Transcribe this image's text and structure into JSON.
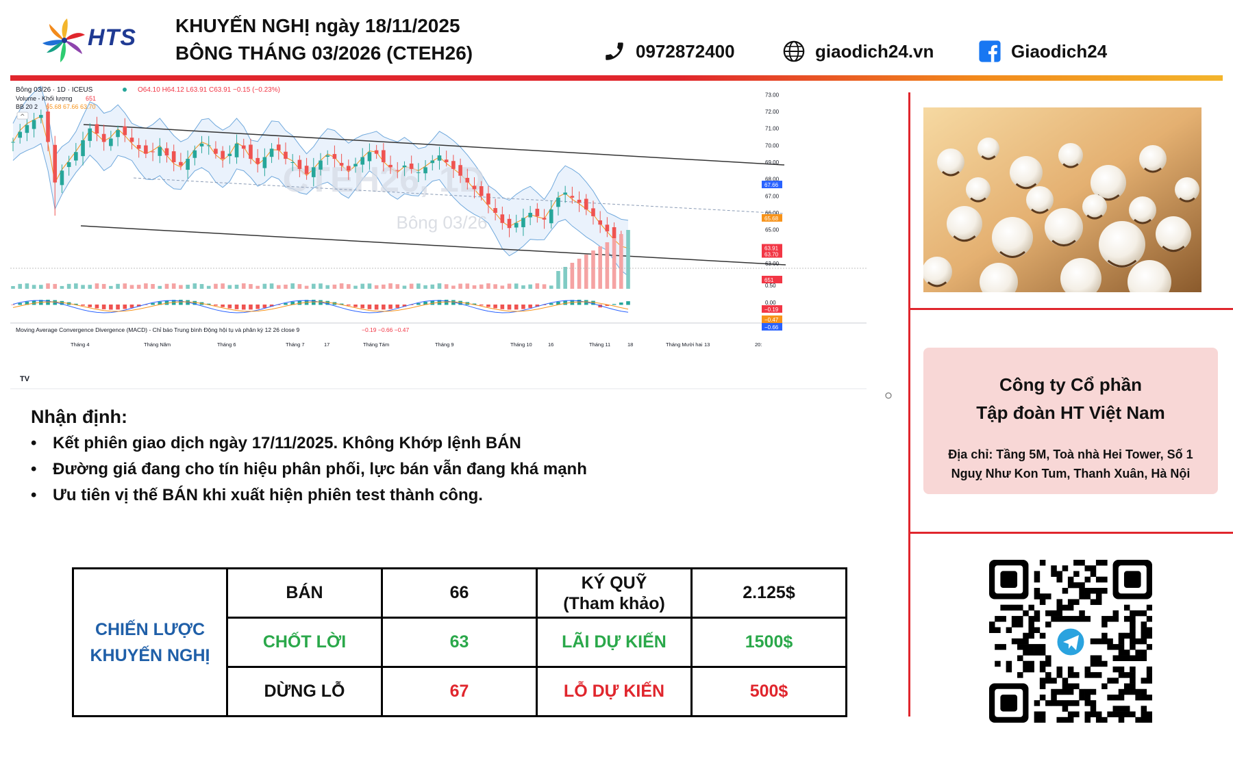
{
  "header": {
    "logo_text": "HTS",
    "title_line1": "KHUYẾN NGHỊ ngày 18/11/2025",
    "title_line2": "BÔNG THÁNG 03/2026 (CTEH26)",
    "phone": "0972872400",
    "website": "giaodich24.vn",
    "facebook": "Giaodich24",
    "icons": [
      "phone-icon",
      "globe-icon",
      "facebook-icon"
    ]
  },
  "chart_header": {
    "symbol_line": "Bông 03/26 · 1D · ICEUS",
    "ohlc": "O64.10 H64.12 L63.91 C63.91 −0.15 (−0.23%)",
    "volume_label": "Volume - Khối lượng",
    "volume_value": "651",
    "bb_label": "BB 20 2",
    "bb_values": "65.68  67.66  63.70",
    "watermark_1": "CTEH26, 1D",
    "watermark_2": "Bông 03/26",
    "macd_label": "Moving Average Convergence Divergence (MACD) - Chỉ báo Trung bình Động hội tụ và phân kỳ 12 26 close 9",
    "macd_values": "−0.19  −0.66  −0.47",
    "tv_logo": "TV"
  },
  "chart_data": {
    "type": "candlestick",
    "y_ticks": [
      "73.00",
      "72.00",
      "71.00",
      "70.00",
      "69.00",
      "68.00",
      "67.00",
      "66.00",
      "65.00",
      "64.00",
      "63.00",
      "62.00"
    ],
    "ylim": [
      61.5,
      73.5
    ],
    "price_badges": [
      {
        "label": "67.66",
        "color": "#2962ff",
        "value": 67.66
      },
      {
        "label": "65.68",
        "color": "#f7931a",
        "value": 65.68
      },
      {
        "label": "63.91",
        "color": "#f23645",
        "value": 63.91
      },
      {
        "label": "63.70",
        "color": "#f23645",
        "value": 63.7
      }
    ],
    "volume_badge": {
      "label": "651",
      "color": "#f23645"
    },
    "volume_axis_label": "0.50",
    "macd_ticks": [
      "0.00"
    ],
    "macd_badges": [
      {
        "label": "−0.19",
        "color": "#f23645"
      },
      {
        "label": "−0.47",
        "color": "#f7931a"
      },
      {
        "label": "−0.66",
        "color": "#2962ff"
      }
    ],
    "x_ticks": [
      "Tháng 4",
      "Tháng Năm",
      "Tháng 6",
      "Tháng 7",
      "17",
      "Tháng Tám",
      "Tháng 9",
      "Tháng 10",
      "16",
      "Tháng 11",
      "18",
      "Tháng Mười hai",
      "13",
      "20:"
    ],
    "close_trend": [
      70.2,
      70.8,
      71.2,
      71.5,
      71.8,
      70.2,
      67.8,
      68.5,
      69.0,
      69.6,
      70.3,
      71.0,
      70.7,
      70.2,
      70.4,
      70.9,
      70.6,
      70.2,
      69.8,
      69.5,
      69.6,
      69.9,
      69.4,
      69.0,
      68.8,
      69.2,
      69.7,
      70.1,
      70.0,
      69.5,
      69.2,
      69.5,
      70.1,
      69.8,
      69.2,
      68.9,
      69.3,
      69.8,
      69.7,
      69.2,
      69.0,
      68.6,
      68.3,
      68.7,
      69.1,
      69.4,
      69.2,
      68.8,
      68.5,
      68.9,
      69.3,
      69.6,
      69.5,
      69.0,
      68.7,
      68.5,
      68.8,
      68.6,
      68.4,
      68.7,
      69.1,
      69.4,
      69.0,
      68.6,
      68.2,
      67.8,
      67.4,
      67.0,
      66.5,
      66.0,
      65.4,
      65.1,
      65.4,
      65.7,
      66.0,
      65.8,
      65.6,
      66.2,
      66.9,
      67.2,
      66.9,
      66.6,
      66.2,
      65.8,
      65.3,
      64.9,
      64.5,
      64.1,
      63.91
    ]
  },
  "analysis": {
    "title": "Nhận định:",
    "bullets": [
      "Kết phiên giao dịch ngày 17/11/2025. Không Khớp lệnh BÁN",
      "Đường giá đang cho tín hiệu phân phối, lực bán vẫn đang khá mạnh",
      "Ưu tiên vị thế BÁN  khi xuất hiện phiên test thành công."
    ]
  },
  "strategy": {
    "label_line1": "CHIẾN LƯỢC",
    "label_line2": "KHUYẾN NGHỊ",
    "rows": [
      {
        "action": "BÁN",
        "price": "66",
        "metric_line1": "KÝ QUỸ",
        "metric_line2": "(Tham khảo)",
        "amount": "2.125$",
        "color": "black"
      },
      {
        "action": "CHỐT LỜI",
        "price": "63",
        "metric_line1": "LÃI DỰ KIẾN",
        "metric_line2": "",
        "amount": "1500$",
        "color": "green"
      },
      {
        "action": "DỪNG LỖ",
        "price": "67",
        "metric_line1": "LỖ DỰ KIẾN",
        "metric_line2": "",
        "amount": "500$",
        "color": "red"
      }
    ]
  },
  "company": {
    "name_line1": "Công ty Cổ phần",
    "name_line2": "Tập đoàn HT Việt Nam",
    "address_line1": "Địa chỉ: Tầng 5M, Toà nhà Hei Tower, Số 1",
    "address_line2": "Nguỵ Như Kon Tum, Thanh Xuân, Hà Nội"
  },
  "images": {
    "cotton_photo": "cotton-field-photo",
    "qr_code": "telegram-qr-code"
  },
  "colors": {
    "brand_red": "#e0262d",
    "brand_blue": "#1f3a93",
    "up_candle": "#26a69a",
    "down_candle": "#ef5350",
    "company_box": "#f8d7d6"
  }
}
